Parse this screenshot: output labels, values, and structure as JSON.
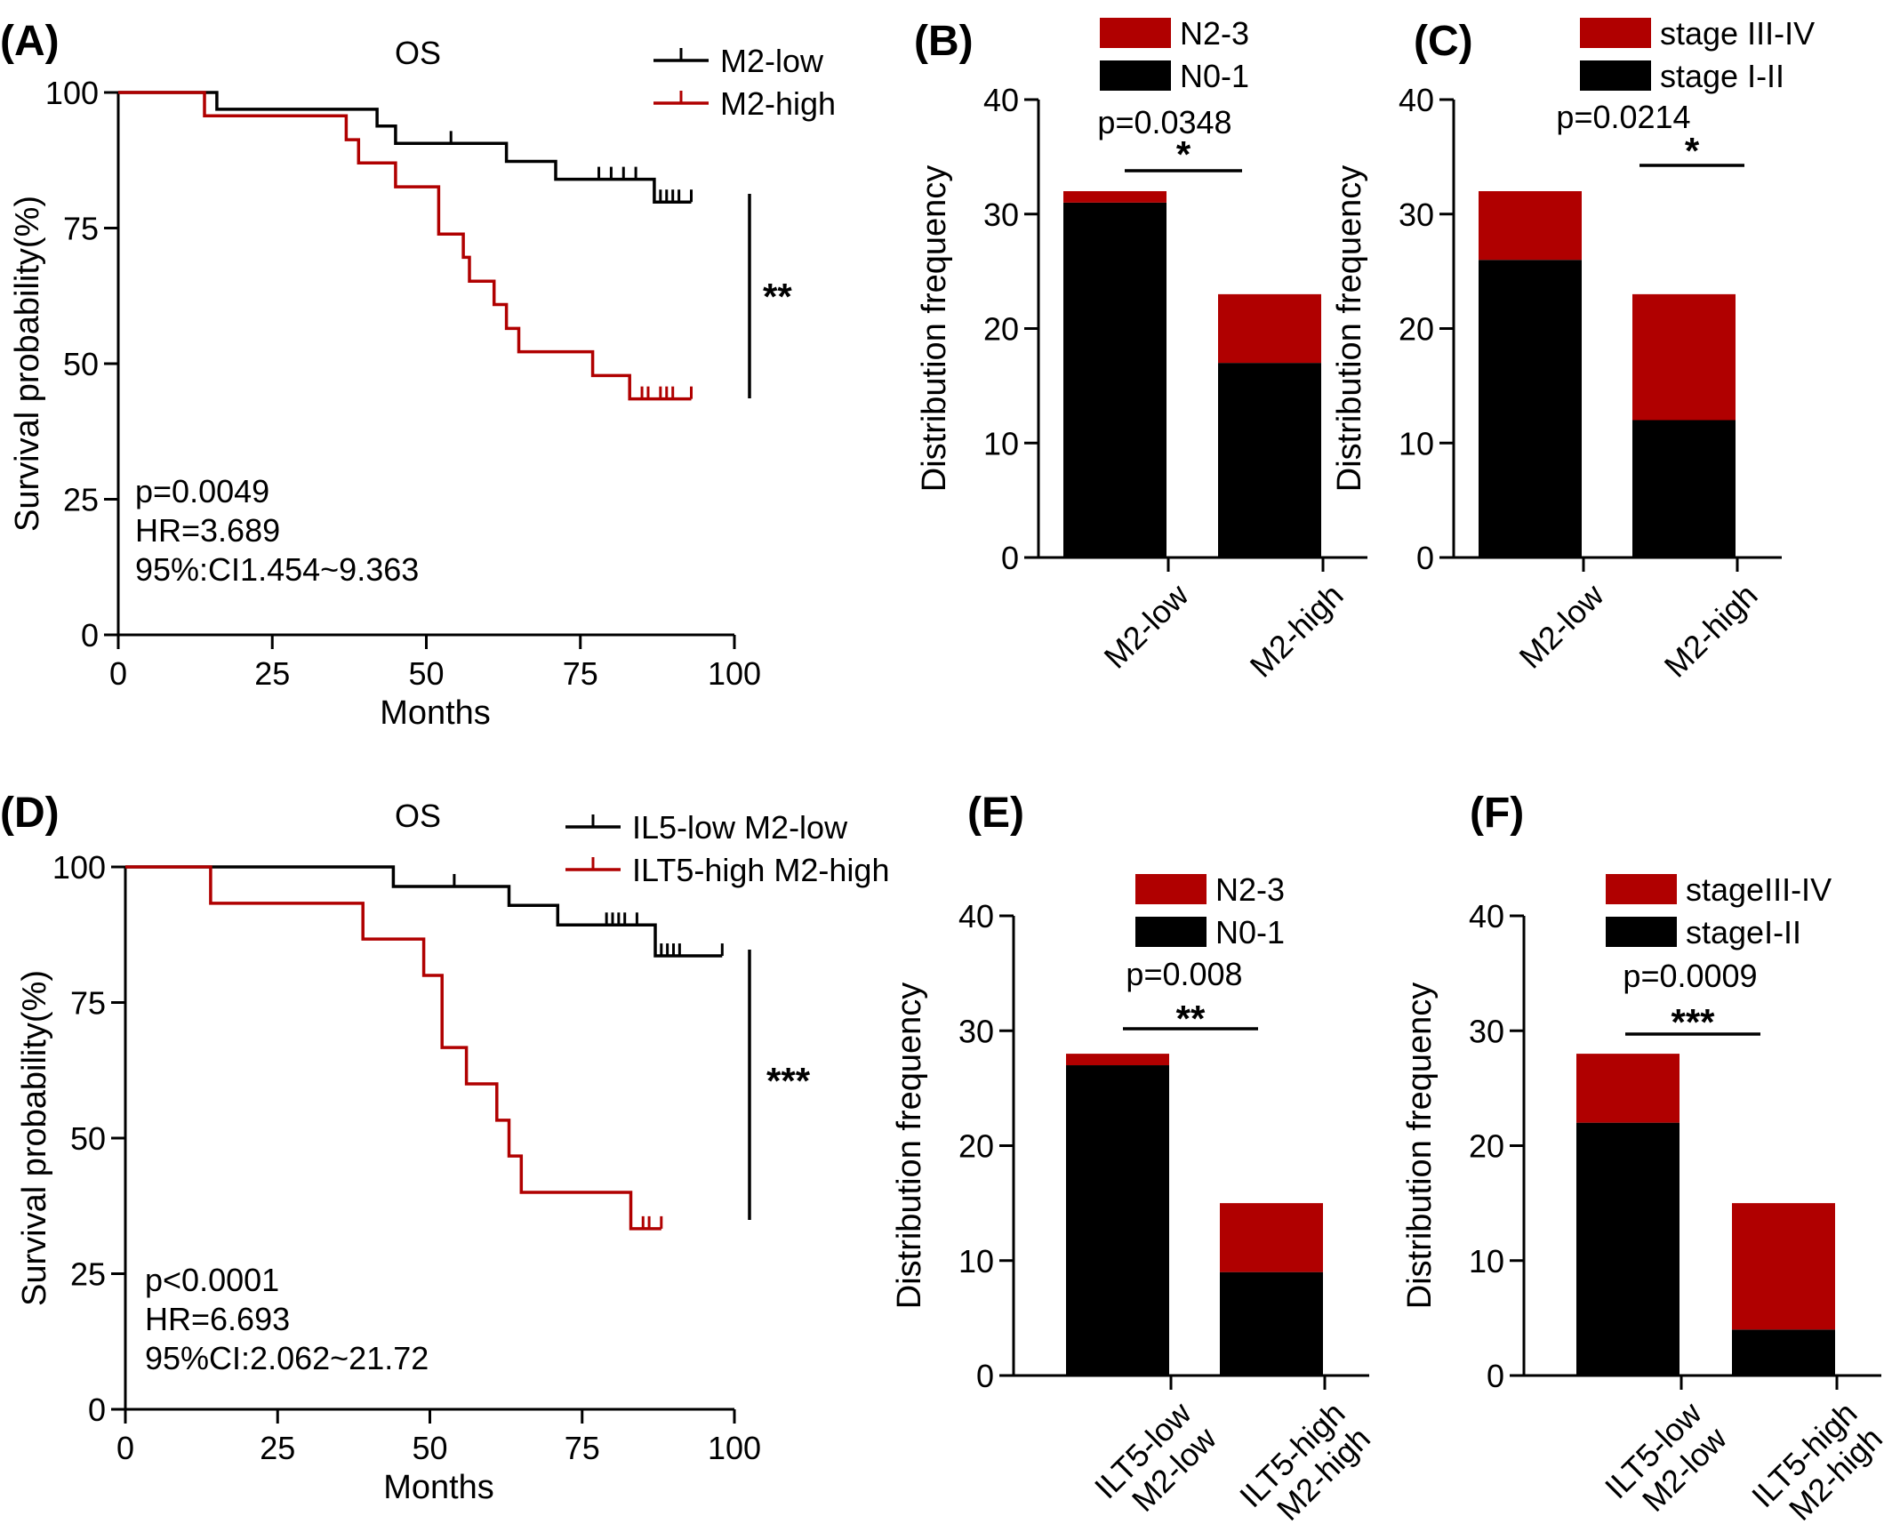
{
  "colors": {
    "low": "#000000",
    "high": "#b00000",
    "background": "#ffffff"
  },
  "chart_data": [
    {
      "panel": "(A)",
      "type": "line",
      "title": "OS",
      "xlabel": "Months",
      "ylabel": "Survival probability(%)",
      "xlim": [
        0,
        100
      ],
      "ylim": [
        0,
        100
      ],
      "xticks": [
        "0",
        "25",
        "50",
        "75",
        "100"
      ],
      "yticks": [
        "0",
        "25",
        "50",
        "75",
        "100"
      ],
      "series": [
        {
          "name": "M2-low",
          "color": "#000000",
          "steps": [
            [
              0,
              100
            ],
            [
              16,
              100
            ],
            [
              16,
              96.9
            ],
            [
              42,
              96.9
            ],
            [
              42,
              93.8
            ],
            [
              45,
              93.8
            ],
            [
              45,
              90.6
            ],
            [
              63,
              90.6
            ],
            [
              63,
              87.3
            ],
            [
              71,
              87.3
            ],
            [
              71,
              84.0
            ],
            [
              87,
              84.0
            ],
            [
              87,
              79.8
            ],
            [
              93,
              79.8
            ]
          ],
          "censors": [
            [
              54,
              90.6
            ],
            [
              78,
              84.0
            ],
            [
              80,
              84.0
            ],
            [
              82,
              84.0
            ],
            [
              84,
              84.0
            ],
            [
              88,
              79.8
            ],
            [
              89,
              79.8
            ],
            [
              90,
              79.8
            ],
            [
              91,
              79.8
            ],
            [
              93,
              79.8
            ]
          ]
        },
        {
          "name": "M2-high",
          "color": "#b00000",
          "steps": [
            [
              0,
              100
            ],
            [
              14,
              100
            ],
            [
              14,
              95.7
            ],
            [
              37,
              95.7
            ],
            [
              37,
              91.3
            ],
            [
              39,
              91.3
            ],
            [
              39,
              87.0
            ],
            [
              45,
              87.0
            ],
            [
              45,
              82.6
            ],
            [
              52,
              82.6
            ],
            [
              52,
              73.9
            ],
            [
              56,
              73.9
            ],
            [
              56,
              69.6
            ],
            [
              57,
              69.6
            ],
            [
              57,
              65.2
            ],
            [
              61,
              65.2
            ],
            [
              61,
              60.9
            ],
            [
              63,
              60.9
            ],
            [
              63,
              56.5
            ],
            [
              65,
              56.5
            ],
            [
              65,
              52.2
            ],
            [
              77,
              52.2
            ],
            [
              77,
              47.8
            ],
            [
              83,
              47.8
            ],
            [
              83,
              43.5
            ],
            [
              93,
              43.5
            ]
          ],
          "censors": [
            [
              85,
              43.5
            ],
            [
              86,
              43.5
            ],
            [
              88,
              43.5
            ],
            [
              89,
              43.5
            ],
            [
              90,
              43.5
            ],
            [
              93,
              43.5
            ]
          ]
        }
      ],
      "stats": [
        "p=0.0049",
        "HR=3.689",
        "95%:CI1.454~9.363"
      ],
      "significance": "**",
      "legend_position": "top-right"
    },
    {
      "panel": "(B)",
      "type": "bar",
      "stacked": true,
      "categories": [
        "M2-low",
        "M2-high"
      ],
      "series": [
        {
          "name": "N0-1",
          "color": "#000000",
          "values": [
            31,
            17
          ]
        },
        {
          "name": "N2-3",
          "color": "#b00000",
          "values": [
            1,
            6
          ]
        }
      ],
      "ylabel": "Distribution frequency",
      "ylim": [
        0,
        40
      ],
      "yticks": [
        "0",
        "10",
        "20",
        "30",
        "40"
      ],
      "pvalue": "p=0.0348",
      "significance": "*",
      "legend_position": "top"
    },
    {
      "panel": "(C)",
      "type": "bar",
      "stacked": true,
      "categories": [
        "M2-low",
        "M2-high"
      ],
      "series": [
        {
          "name": "stage I-II",
          "color": "#000000",
          "values": [
            26,
            12
          ]
        },
        {
          "name": "stage III-IV",
          "color": "#b00000",
          "values": [
            6,
            11
          ]
        }
      ],
      "ylabel": "Distribution frequency",
      "ylim": [
        0,
        40
      ],
      "yticks": [
        "0",
        "10",
        "20",
        "30",
        "40"
      ],
      "pvalue": "p=0.0214",
      "significance": "*",
      "legend_position": "top"
    },
    {
      "panel": "(D)",
      "type": "line",
      "title": "OS",
      "xlabel": "Months",
      "ylabel": "Survival probability(%)",
      "xlim": [
        0,
        100
      ],
      "ylim": [
        0,
        100
      ],
      "xticks": [
        "0",
        "25",
        "50",
        "75",
        "100"
      ],
      "yticks": [
        "0",
        "25",
        "50",
        "75",
        "100"
      ],
      "series": [
        {
          "name": "IL5-low M2-low",
          "color": "#000000",
          "steps": [
            [
              0,
              100
            ],
            [
              44,
              100
            ],
            [
              44,
              96.4
            ],
            [
              63,
              96.4
            ],
            [
              63,
              92.9
            ],
            [
              71,
              92.9
            ],
            [
              71,
              89.3
            ],
            [
              87,
              89.3
            ],
            [
              87,
              83.6
            ],
            [
              98,
              83.6
            ]
          ],
          "censors": [
            [
              54,
              96.4
            ],
            [
              79,
              89.3
            ],
            [
              80,
              89.3
            ],
            [
              81,
              89.3
            ],
            [
              82,
              89.3
            ],
            [
              84,
              89.3
            ],
            [
              88,
              83.6
            ],
            [
              89,
              83.6
            ],
            [
              90,
              83.6
            ],
            [
              91,
              83.6
            ],
            [
              98,
              83.6
            ]
          ]
        },
        {
          "name": "ILT5-high M2-high",
          "color": "#b00000",
          "steps": [
            [
              0,
              100
            ],
            [
              14,
              100
            ],
            [
              14,
              93.3
            ],
            [
              39,
              93.3
            ],
            [
              39,
              86.7
            ],
            [
              49,
              86.7
            ],
            [
              49,
              80.0
            ],
            [
              52,
              80.0
            ],
            [
              52,
              66.7
            ],
            [
              56,
              66.7
            ],
            [
              56,
              60.0
            ],
            [
              61,
              60.0
            ],
            [
              61,
              53.3
            ],
            [
              63,
              53.3
            ],
            [
              63,
              46.7
            ],
            [
              65,
              46.7
            ],
            [
              65,
              40.0
            ],
            [
              83,
              40.0
            ],
            [
              83,
              33.3
            ],
            [
              88,
              33.3
            ]
          ],
          "censors": [
            [
              85,
              33.3
            ],
            [
              86,
              33.3
            ],
            [
              88,
              33.3
            ]
          ]
        }
      ],
      "stats": [
        "p<0.0001",
        "HR=6.693",
        "95%CI:2.062~21.72"
      ],
      "significance": "***",
      "legend_position": "top-right"
    },
    {
      "panel": "(E)",
      "type": "bar",
      "stacked": true,
      "categories": [
        [
          "ILT5-low",
          "M2-low"
        ],
        [
          "ILT5-high",
          "M2-high"
        ]
      ],
      "series": [
        {
          "name": "N0-1",
          "color": "#000000",
          "values": [
            27,
            9
          ]
        },
        {
          "name": "N2-3",
          "color": "#b00000",
          "values": [
            1,
            6
          ]
        }
      ],
      "ylabel": "Distribution frequency",
      "ylim": [
        0,
        40
      ],
      "yticks": [
        "0",
        "10",
        "20",
        "30",
        "40"
      ],
      "pvalue": "p=0.008",
      "significance": "**",
      "legend_position": "top"
    },
    {
      "panel": "(F)",
      "type": "bar",
      "stacked": true,
      "categories": [
        [
          "ILT5-low",
          "M2-low"
        ],
        [
          "ILT5-high",
          "M2-high"
        ]
      ],
      "series": [
        {
          "name": "stageI-II",
          "color": "#000000",
          "values": [
            22,
            4
          ]
        },
        {
          "name": "stageIII-IV",
          "color": "#b00000",
          "values": [
            6,
            11
          ]
        }
      ],
      "ylabel": "Distribution frequency",
      "ylim": [
        0,
        40
      ],
      "yticks": [
        "0",
        "10",
        "20",
        "30",
        "40"
      ],
      "pvalue": "p=0.0009",
      "significance": "***",
      "legend_position": "top"
    }
  ]
}
